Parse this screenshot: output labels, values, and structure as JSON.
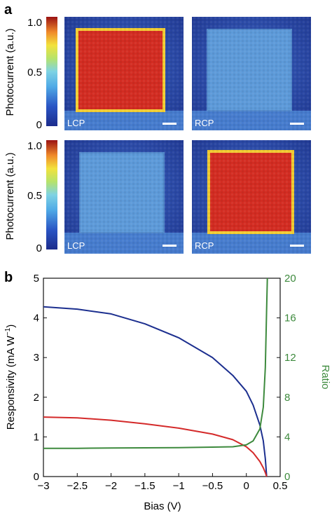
{
  "panel_a": {
    "letter": "a",
    "colorbar": {
      "label": "Photocurrent (a.u.)",
      "ticks": [
        "1.0",
        "0.5",
        "0"
      ],
      "tick_values": [
        1.0,
        0.5,
        0.0
      ]
    },
    "maps": [
      {
        "polarization": "LCP",
        "level": 0.92
      },
      {
        "polarization": "RCP",
        "level": 0.33
      },
      {
        "polarization": "LCP",
        "level": 0.32
      },
      {
        "polarization": "RCP",
        "level": 0.92
      }
    ]
  },
  "panel_b": {
    "letter": "b",
    "xlabel": "Bias (V)",
    "ylabel_left": "Responsivity (mA W",
    "ylabel_left_sup": "−1",
    "ylabel_left_end": ")",
    "ylabel_right": "Ratio",
    "colors": {
      "blue": "#1c2f8f",
      "red": "#d42a2a",
      "green": "#3d8a3d",
      "right_axis": "#3d8a3d"
    }
  },
  "chart_data": {
    "type": "line",
    "xlabel": "Bias (V)",
    "ylabel": "Responsivity (mA W−1)",
    "y2label": "Ratio",
    "xlim": [
      -3,
      0.5
    ],
    "ylim": [
      0,
      5
    ],
    "y2lim": [
      0,
      20
    ],
    "xticks": [
      "−3",
      "−2.5",
      "−2",
      "−1.5",
      "−1",
      "−0.5",
      "0",
      "0.5"
    ],
    "yticks": [
      "0",
      "1",
      "2",
      "3",
      "4",
      "5"
    ],
    "y2ticks": [
      "0",
      "4",
      "8",
      "12",
      "16",
      "20"
    ],
    "series": [
      {
        "color": "#1c2f8f",
        "axis": "left",
        "x": [
          -3,
          -2.5,
          -2,
          -1.5,
          -1,
          -0.5,
          -0.2,
          0,
          0.1,
          0.2,
          0.25,
          0.28,
          0.3
        ],
        "y": [
          4.28,
          4.22,
          4.1,
          3.85,
          3.5,
          3.0,
          2.55,
          2.15,
          1.8,
          1.3,
          0.9,
          0.45,
          0
        ]
      },
      {
        "color": "#d42a2a",
        "axis": "left",
        "x": [
          -3,
          -2.5,
          -2,
          -1.5,
          -1,
          -0.5,
          -0.2,
          0,
          0.1,
          0.2,
          0.25,
          0.28,
          0.3
        ],
        "y": [
          1.5,
          1.48,
          1.42,
          1.33,
          1.22,
          1.07,
          0.93,
          0.75,
          0.6,
          0.38,
          0.22,
          0.1,
          0
        ]
      },
      {
        "color": "#3d8a3d",
        "axis": "right",
        "x": [
          -3,
          -2.5,
          -2,
          -1.5,
          -1,
          -0.5,
          -0.2,
          0,
          0.1,
          0.2,
          0.25,
          0.28,
          0.3,
          0.31
        ],
        "y": [
          2.85,
          2.85,
          2.88,
          2.9,
          2.92,
          2.97,
          3.0,
          3.2,
          3.6,
          4.8,
          7.0,
          11.0,
          17.0,
          20.0
        ]
      }
    ],
    "grid": false
  }
}
